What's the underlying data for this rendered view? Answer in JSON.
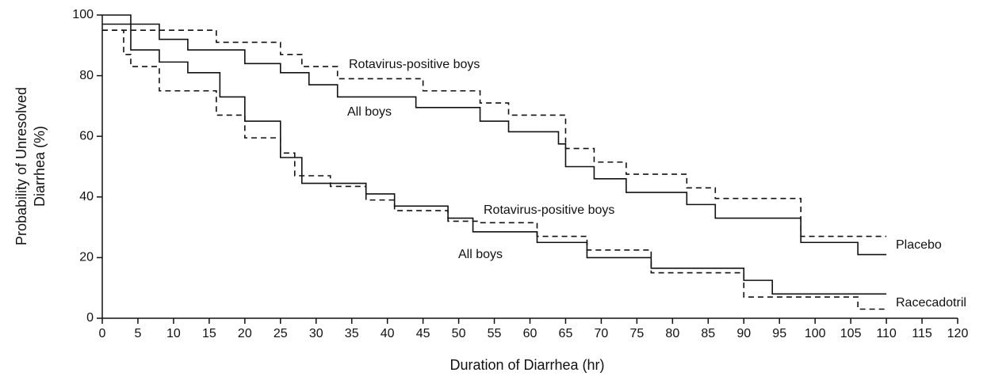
{
  "chart_data": {
    "type": "step",
    "xlabel": "Duration of Diarrhea (hr)",
    "ylabel": [
      "Probability of Unresolved",
      "Diarrhea (%)"
    ],
    "xlim": [
      0,
      120
    ],
    "ylim": [
      0,
      100
    ],
    "xticks": [
      0,
      5,
      10,
      15,
      20,
      25,
      30,
      35,
      40,
      45,
      50,
      55,
      60,
      65,
      70,
      75,
      80,
      85,
      90,
      95,
      100,
      105,
      110,
      115,
      120
    ],
    "yticks": [
      0,
      20,
      40,
      60,
      80,
      100
    ],
    "color": "#111111",
    "series": [
      {
        "style": "solid",
        "x": [
          0,
          8,
          12,
          20,
          25,
          29,
          33,
          44,
          53,
          57,
          64,
          65,
          69,
          73.5,
          82,
          86,
          98,
          106,
          110
        ],
        "values": [
          97,
          92,
          88.5,
          84,
          81,
          77,
          73,
          69.5,
          65,
          61.5,
          57.5,
          50,
          46,
          41.5,
          37.5,
          33,
          25,
          21,
          21
        ]
      },
      {
        "style": "dashed",
        "x": [
          0,
          16,
          25,
          28,
          33,
          45,
          53,
          57,
          65,
          69,
          73.5,
          82,
          86,
          98,
          110
        ],
        "values": [
          95,
          91,
          87,
          83,
          79,
          75,
          71,
          67,
          56,
          51.5,
          47.5,
          43,
          39.5,
          27,
          27
        ]
      },
      {
        "style": "solid",
        "x": [
          0,
          4,
          8,
          12,
          16.5,
          20,
          25,
          28,
          37,
          41,
          48.5,
          52,
          61,
          68,
          77,
          90,
          94,
          110
        ],
        "values": [
          100,
          88.5,
          84.5,
          81,
          73,
          65,
          53,
          44.5,
          41,
          37,
          33,
          28.5,
          25,
          20,
          16.5,
          12.5,
          8,
          8
        ]
      },
      {
        "style": "dashed",
        "x": [
          0,
          3,
          4,
          8,
          16,
          20,
          25,
          27,
          32,
          37,
          41,
          48.5,
          53,
          61,
          68,
          77,
          90,
          106,
          110
        ],
        "values": [
          95,
          87,
          83,
          75,
          67,
          59.5,
          54.5,
          47,
          43.5,
          39,
          35.5,
          32,
          31.5,
          27,
          22.5,
          15,
          7,
          3,
          3
        ]
      }
    ],
    "annotations": [
      "Rotavirus-positive boys",
      "All boys",
      "Rotavirus-positive boys",
      "All boys",
      "Placebo",
      "Racecadotril"
    ]
  }
}
